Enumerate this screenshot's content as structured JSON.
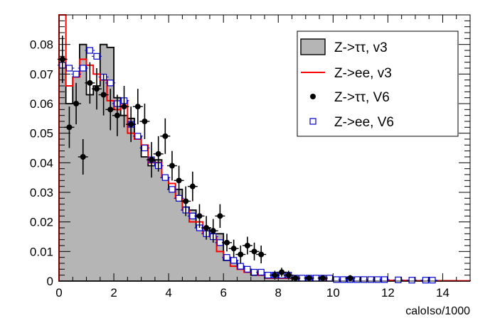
{
  "chart_data": {
    "type": "histogram",
    "xlabel": "caloIso/1000",
    "xlim": [
      0,
      15
    ],
    "ylim": [
      0,
      0.09
    ],
    "bin_width": 0.25,
    "x_ticks": [
      0,
      2,
      4,
      6,
      8,
      10,
      12,
      14
    ],
    "y_ticks": [
      0,
      0.01,
      0.02,
      0.03,
      0.04,
      0.05,
      0.06,
      0.07,
      0.08
    ],
    "y_tick_labels": [
      "0",
      "0.01",
      "0.02",
      "0.03",
      "0.04",
      "0.05",
      "0.06",
      "0.07",
      "0.08"
    ],
    "grid": false,
    "legend_position": "top-right",
    "series": [
      {
        "name": "Z->ττ, v3",
        "style": "filled-histogram",
        "fill_color": "#b5b5b5",
        "line_color": "#000000",
        "values": [
          0.073,
          0.06,
          0.069,
          0.08,
          0.063,
          0.066,
          0.08,
          0.079,
          0.062,
          0.056,
          0.055,
          0.049,
          0.042,
          0.039,
          0.041,
          0.035,
          0.031,
          0.031,
          0.025,
          0.024,
          0.018,
          0.018,
          0.016,
          0.016,
          0.007,
          0.007,
          0.005,
          0.004,
          0.002,
          0.002,
          0.001,
          0.001,
          0.001,
          0.001,
          0.0007,
          0.0007,
          0.0005,
          0.0005,
          0.0004,
          0.0004,
          0.0003,
          0.0003,
          0.0002,
          0.0002,
          0.0002,
          0.0001,
          0.0001,
          0.0001,
          0.0001,
          0.0001,
          0.0001,
          0.0001,
          0.0001,
          0.0001,
          0.0001,
          0.0001,
          0.0001,
          0.0001,
          0,
          0
        ]
      },
      {
        "name": "Z->ee, v3",
        "style": "line-histogram",
        "line_color": "#ff0000",
        "values": [
          0.095,
          0.066,
          0.069,
          0.075,
          0.073,
          0.07,
          0.068,
          0.061,
          0.058,
          0.061,
          0.05,
          0.048,
          0.046,
          0.04,
          0.04,
          0.035,
          0.033,
          0.028,
          0.024,
          0.02,
          0.02,
          0.016,
          0.015,
          0.01,
          0.008,
          0.005,
          0.004,
          0.003,
          0.003,
          0.002,
          0.001,
          0.001,
          0.001,
          0.001,
          0.001,
          0.001,
          0.0008,
          0.0008,
          0.0006,
          0.0005,
          0.0005,
          0.0004,
          0.0004,
          0.0003,
          0.0003,
          0.0003,
          0.0003,
          0.0002,
          0.0002,
          0.0002,
          0.0002,
          0.0002,
          0.0001,
          0.0001,
          0.0001,
          0.0001,
          0.0001,
          0.0001,
          0.0001,
          0.0001
        ]
      },
      {
        "name": "Z->ττ, V6",
        "style": "markers-errorbars",
        "marker": "filled-circle",
        "color": "#000000",
        "points": [
          {
            "x": 0.125,
            "y": 0.075,
            "err": 0.008
          },
          {
            "x": 0.375,
            "y": 0.052,
            "err": 0.007
          },
          {
            "x": 0.625,
            "y": 0.06,
            "err": 0.007
          },
          {
            "x": 0.875,
            "y": 0.042,
            "err": 0.006
          },
          {
            "x": 1.125,
            "y": 0.067,
            "err": 0.007
          },
          {
            "x": 1.375,
            "y": 0.065,
            "err": 0.007
          },
          {
            "x": 1.625,
            "y": 0.063,
            "err": 0.007
          },
          {
            "x": 1.875,
            "y": 0.058,
            "err": 0.007
          },
          {
            "x": 2.125,
            "y": 0.056,
            "err": 0.007
          },
          {
            "x": 2.375,
            "y": 0.059,
            "err": 0.007
          },
          {
            "x": 2.625,
            "y": 0.053,
            "err": 0.006
          },
          {
            "x": 2.875,
            "y": 0.059,
            "err": 0.006
          },
          {
            "x": 3.125,
            "y": 0.054,
            "err": 0.006
          },
          {
            "x": 3.375,
            "y": 0.041,
            "err": 0.006
          },
          {
            "x": 3.625,
            "y": 0.043,
            "err": 0.006
          },
          {
            "x": 3.875,
            "y": 0.049,
            "err": 0.006
          },
          {
            "x": 4.125,
            "y": 0.039,
            "err": 0.005
          },
          {
            "x": 4.375,
            "y": 0.034,
            "err": 0.005
          },
          {
            "x": 4.625,
            "y": 0.027,
            "err": 0.005
          },
          {
            "x": 4.875,
            "y": 0.032,
            "err": 0.005
          },
          {
            "x": 5.125,
            "y": 0.022,
            "err": 0.004
          },
          {
            "x": 5.375,
            "y": 0.018,
            "err": 0.004
          },
          {
            "x": 5.625,
            "y": 0.017,
            "err": 0.004
          },
          {
            "x": 5.875,
            "y": 0.022,
            "err": 0.004
          },
          {
            "x": 6.125,
            "y": 0.013,
            "err": 0.003
          },
          {
            "x": 6.375,
            "y": 0.011,
            "err": 0.003
          },
          {
            "x": 6.625,
            "y": 0.009,
            "err": 0.003
          },
          {
            "x": 6.875,
            "y": 0.012,
            "err": 0.003
          },
          {
            "x": 7.125,
            "y": 0.01,
            "err": 0.003
          },
          {
            "x": 7.375,
            "y": 0.009,
            "err": 0.003
          },
          {
            "x": 7.875,
            "y": 0.002,
            "err": 0.0015
          },
          {
            "x": 8.125,
            "y": 0.003,
            "err": 0.0015
          },
          {
            "x": 8.375,
            "y": 0.002,
            "err": 0.0015
          },
          {
            "x": 8.625,
            "y": 0.001,
            "err": 0.001
          },
          {
            "x": 9.125,
            "y": 0.001,
            "err": 0.001
          },
          {
            "x": 9.625,
            "y": 0.001,
            "err": 0.001
          },
          {
            "x": 10.625,
            "y": 0.001,
            "err": 0.001
          }
        ]
      },
      {
        "name": "Z->ee, V6",
        "style": "markers",
        "marker": "open-square",
        "color": "#0000cc",
        "points": [
          {
            "x": 0.125,
            "y": 0.073
          },
          {
            "x": 0.375,
            "y": 0.072
          },
          {
            "x": 0.625,
            "y": 0.07
          },
          {
            "x": 0.875,
            "y": 0.072
          },
          {
            "x": 1.125,
            "y": 0.078
          },
          {
            "x": 1.375,
            "y": 0.076
          },
          {
            "x": 1.625,
            "y": 0.069
          },
          {
            "x": 1.875,
            "y": 0.067
          },
          {
            "x": 2.125,
            "y": 0.06
          },
          {
            "x": 2.375,
            "y": 0.061
          },
          {
            "x": 2.625,
            "y": 0.053
          },
          {
            "x": 2.875,
            "y": 0.049
          },
          {
            "x": 3.125,
            "y": 0.045
          },
          {
            "x": 3.375,
            "y": 0.041
          },
          {
            "x": 3.625,
            "y": 0.039
          },
          {
            "x": 3.875,
            "y": 0.035
          },
          {
            "x": 4.125,
            "y": 0.031
          },
          {
            "x": 4.375,
            "y": 0.028
          },
          {
            "x": 4.625,
            "y": 0.024
          },
          {
            "x": 4.875,
            "y": 0.022
          },
          {
            "x": 5.125,
            "y": 0.018
          },
          {
            "x": 5.375,
            "y": 0.016
          },
          {
            "x": 5.625,
            "y": 0.015
          },
          {
            "x": 5.875,
            "y": 0.013
          },
          {
            "x": 6.125,
            "y": 0.008
          },
          {
            "x": 6.375,
            "y": 0.007
          },
          {
            "x": 6.625,
            "y": 0.005
          },
          {
            "x": 6.875,
            "y": 0.004
          },
          {
            "x": 7.125,
            "y": 0.003
          },
          {
            "x": 7.375,
            "y": 0.003
          },
          {
            "x": 7.625,
            "y": 0.002
          },
          {
            "x": 7.875,
            "y": 0.002
          },
          {
            "x": 8.125,
            "y": 0.002
          },
          {
            "x": 8.375,
            "y": 0.002
          },
          {
            "x": 8.625,
            "y": 0.001
          },
          {
            "x": 8.875,
            "y": 0.001
          },
          {
            "x": 9.125,
            "y": 0.001
          },
          {
            "x": 9.375,
            "y": 0.001
          },
          {
            "x": 9.625,
            "y": 0.001
          },
          {
            "x": 9.875,
            "y": 0.001
          },
          {
            "x": 10.125,
            "y": 0.0005
          },
          {
            "x": 10.375,
            "y": 0.0005
          },
          {
            "x": 10.625,
            "y": 0.0005
          },
          {
            "x": 10.875,
            "y": 0.0005
          },
          {
            "x": 11.125,
            "y": 0.0005
          },
          {
            "x": 11.375,
            "y": 0.0005
          },
          {
            "x": 11.625,
            "y": 0.0005
          },
          {
            "x": 11.875,
            "y": 0.0005
          },
          {
            "x": 12.375,
            "y": 0.0004
          },
          {
            "x": 12.875,
            "y": 0.0003
          },
          {
            "x": 13.375,
            "y": 0.0003
          },
          {
            "x": 13.625,
            "y": 0.0003
          }
        ]
      }
    ]
  }
}
